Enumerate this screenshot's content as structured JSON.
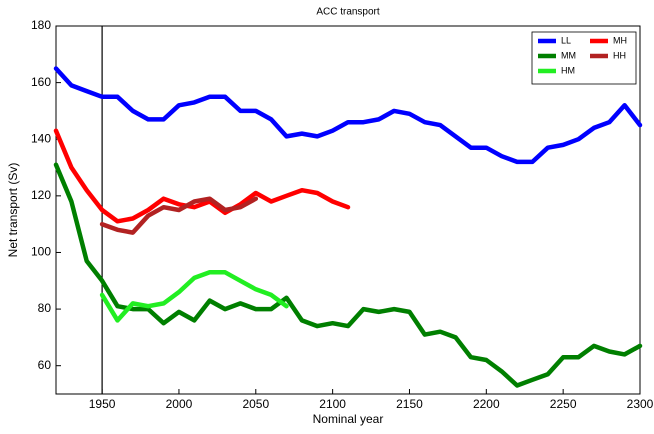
{
  "chart_data": {
    "type": "line",
    "title": "ACC transport",
    "xlabel": "Nominal year",
    "ylabel": "Net transport (Sv)",
    "x": [
      1920,
      1930,
      1940,
      1950,
      1960,
      1970,
      1980,
      1990,
      2000,
      2010,
      2020,
      2030,
      2040,
      2050,
      2060,
      2070,
      2080,
      2090,
      2100,
      2110,
      2120,
      2130,
      2140,
      2150,
      2160,
      2170,
      2180,
      2190,
      2200,
      2210,
      2220,
      2230,
      2240,
      2250,
      2260,
      2270,
      2280,
      2290,
      2300
    ],
    "series": [
      {
        "name": "LL",
        "color": "#0000ff",
        "values": [
          165,
          159,
          157,
          155,
          155,
          150,
          147,
          147,
          152,
          153,
          155,
          155,
          150,
          150,
          147,
          141,
          142,
          141,
          143,
          146,
          146,
          147,
          150,
          149,
          146,
          145,
          141,
          137,
          137,
          134,
          132,
          132,
          137,
          138,
          140,
          144,
          146,
          152,
          145
        ]
      },
      {
        "name": "MM",
        "color": "#007f00",
        "values": [
          131,
          118,
          97,
          90,
          81,
          80,
          80,
          75,
          79,
          76,
          83,
          80,
          82,
          80,
          80,
          84,
          76,
          74,
          75,
          74,
          80,
          79,
          80,
          79,
          71,
          72,
          70,
          63,
          62,
          58,
          53,
          55,
          57,
          63,
          63,
          67,
          65,
          64,
          67
        ]
      },
      {
        "name": "HM",
        "color": "#22ee22",
        "values": [
          null,
          null,
          null,
          85,
          76,
          82,
          81,
          82,
          86,
          91,
          93,
          93,
          90,
          87,
          85,
          81,
          null,
          null,
          null,
          null,
          null,
          null,
          null,
          null,
          null,
          null,
          null,
          null,
          null,
          null,
          null,
          null,
          null,
          null,
          null,
          null,
          null,
          null,
          null
        ]
      },
      {
        "name": "MH",
        "color": "#ff0000",
        "values": [
          143,
          130,
          122,
          115,
          111,
          112,
          115,
          119,
          117,
          116,
          118,
          114,
          117,
          121,
          118,
          120,
          122,
          121,
          118,
          116,
          null,
          null,
          null,
          null,
          null,
          null,
          null,
          null,
          null,
          null,
          null,
          null,
          null,
          null,
          null,
          null,
          null,
          null,
          null
        ]
      },
      {
        "name": "HH",
        "color": "#b22222",
        "values": [
          null,
          null,
          null,
          110,
          108,
          107,
          113,
          116,
          115,
          118,
          119,
          115,
          116,
          119,
          null,
          null,
          null,
          null,
          null,
          null,
          null,
          null,
          null,
          null,
          null,
          null,
          null,
          null,
          null,
          null,
          null,
          null,
          null,
          null,
          null,
          null,
          null,
          null,
          null
        ]
      }
    ],
    "vline": 1950,
    "xlim": [
      1920,
      2300
    ],
    "xticks": [
      1950,
      2000,
      2050,
      2100,
      2150,
      2200,
      2250,
      2300
    ],
    "ylim": [
      50,
      180
    ],
    "yticks": [
      60,
      80,
      100,
      120,
      140,
      160,
      180
    ],
    "legend": "upper right"
  }
}
